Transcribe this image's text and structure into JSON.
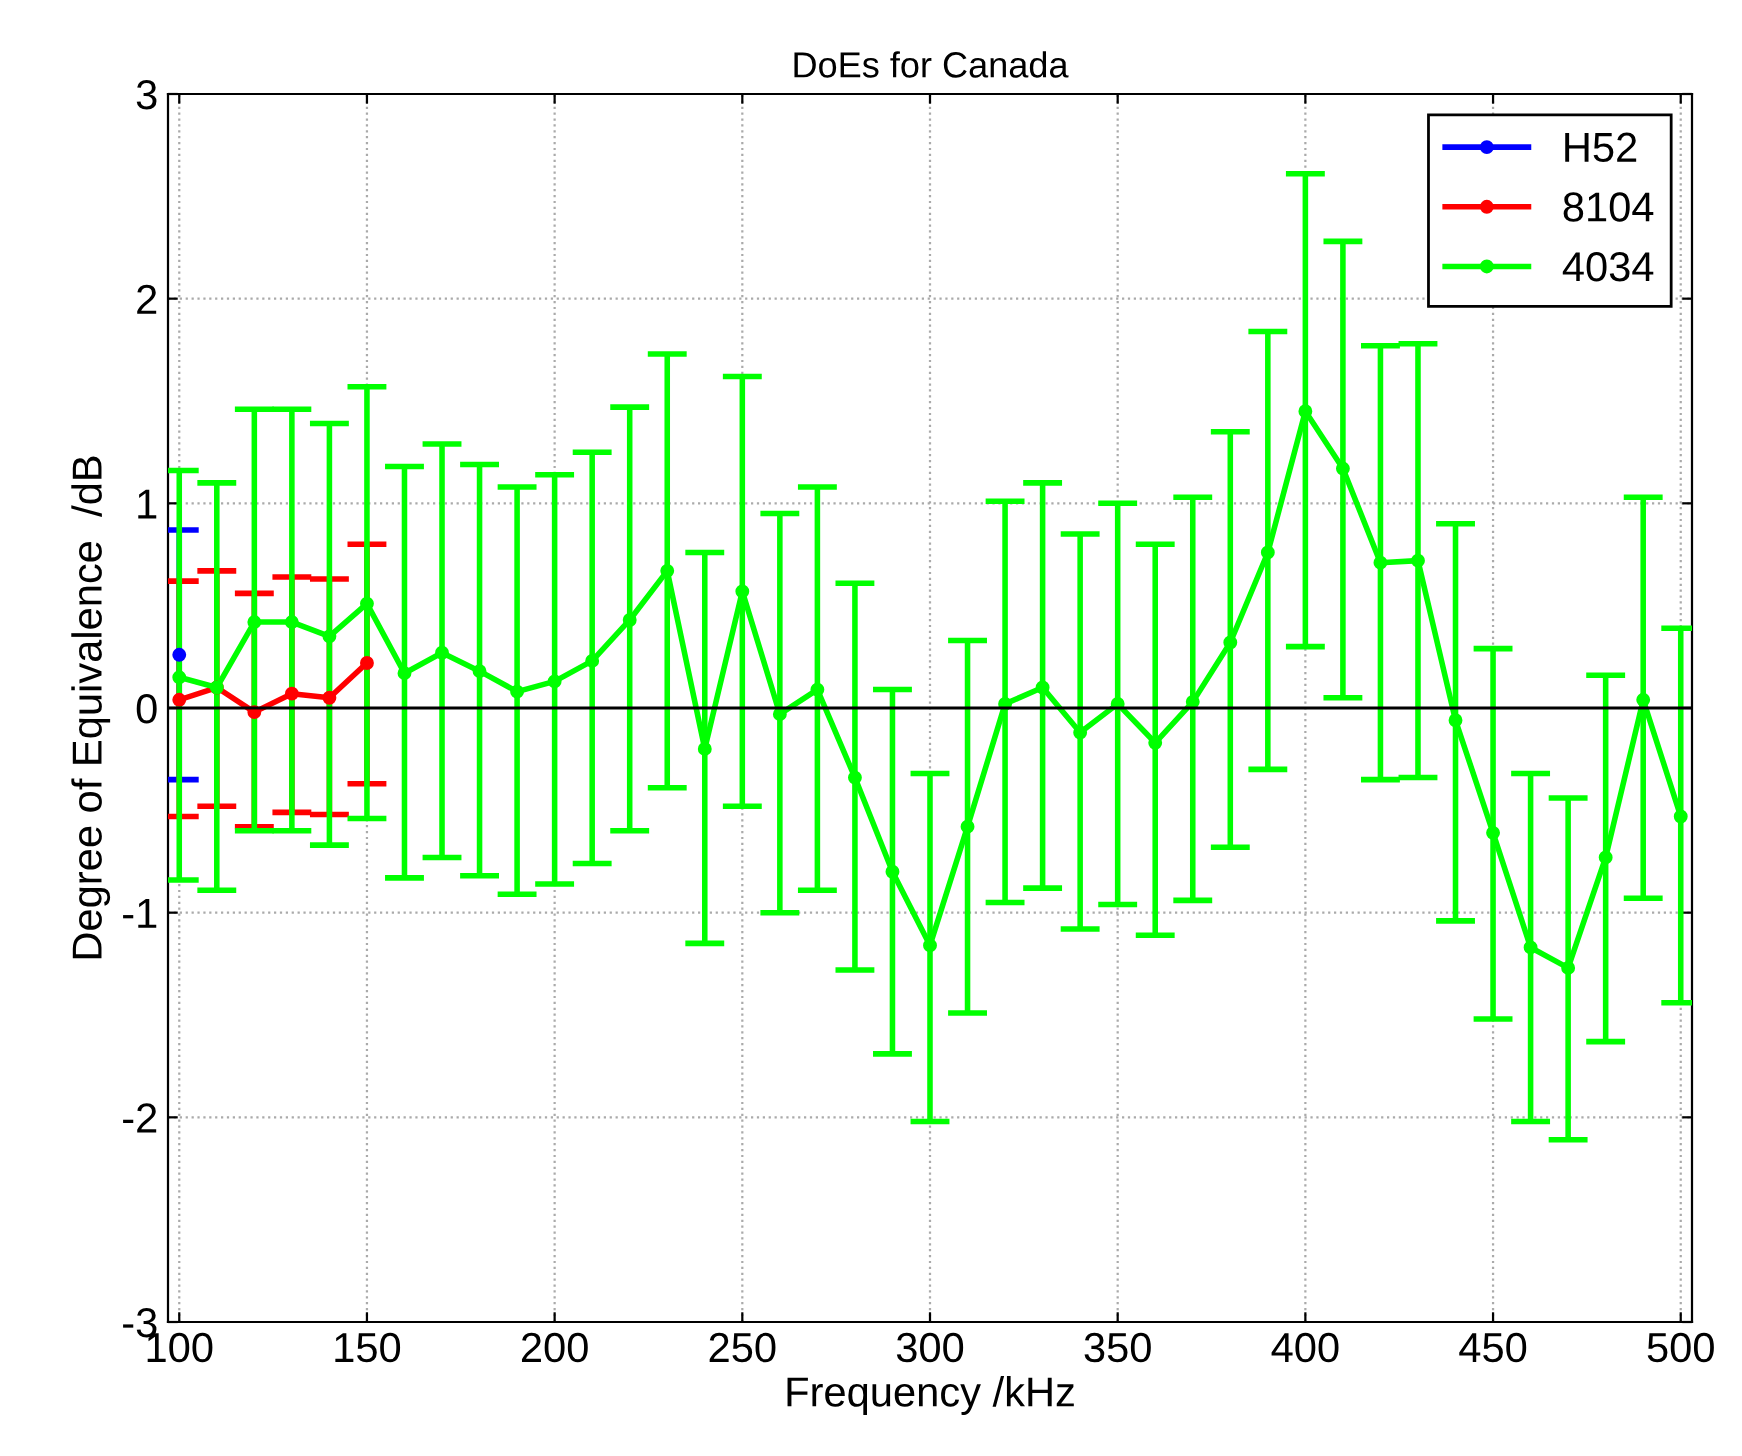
{
  "chart_data": {
    "type": "line",
    "title": "DoEs for Canada",
    "xlabel": "Frequency /kHz",
    "ylabel": "Degree of Equivalence  /dB",
    "xlim": [
      97,
      503
    ],
    "xticks": [
      100,
      150,
      200,
      250,
      300,
      350,
      400,
      450,
      500
    ],
    "ylim": [
      -3,
      3
    ],
    "yticks": [
      -3,
      -2,
      -1,
      0,
      1,
      2,
      3
    ],
    "grid": true,
    "legend": "top right",
    "marker": "circle",
    "line_style": "solid",
    "ref_lines": [
      {
        "axis": "y",
        "value": 0,
        "color": "#000000"
      }
    ],
    "series": [
      {
        "name": "H52",
        "color": "#0000ff",
        "x": [
          100
        ],
        "values": [
          0.26
        ],
        "errors": [
          [
            -0.35,
            0.87
          ]
        ]
      },
      {
        "name": "8104",
        "color": "#ff0000",
        "x": [
          100,
          110,
          120,
          130,
          140,
          150
        ],
        "values": [
          0.04,
          0.1,
          -0.02,
          0.07,
          0.05,
          0.22
        ],
        "errors": [
          [
            -0.53,
            0.62
          ],
          [
            -0.48,
            0.67
          ],
          [
            -0.58,
            0.56
          ],
          [
            -0.51,
            0.64
          ],
          [
            -0.52,
            0.63
          ],
          [
            -0.37,
            0.8
          ]
        ]
      },
      {
        "name": "4034",
        "color": "#00ff00",
        "x": [
          100,
          110,
          120,
          130,
          140,
          150,
          160,
          170,
          180,
          190,
          200,
          210,
          220,
          230,
          240,
          250,
          260,
          270,
          280,
          290,
          300,
          310,
          320,
          330,
          340,
          350,
          360,
          370,
          380,
          390,
          400,
          410,
          420,
          430,
          440,
          450,
          460,
          470,
          480,
          490,
          500
        ],
        "values": [
          0.15,
          0.1,
          0.42,
          0.42,
          0.35,
          0.51,
          0.17,
          0.27,
          0.18,
          0.08,
          0.13,
          0.23,
          0.43,
          0.67,
          -0.2,
          0.57,
          -0.03,
          0.09,
          -0.34,
          -0.8,
          -1.16,
          -0.58,
          0.02,
          0.1,
          -0.12,
          0.02,
          -0.17,
          0.03,
          0.32,
          0.76,
          1.45,
          1.17,
          0.71,
          0.72,
          -0.06,
          -0.61,
          -1.17,
          -1.27,
          -0.73,
          0.04,
          -0.53
        ],
        "errors": [
          [
            -0.84,
            1.16
          ],
          [
            -0.89,
            1.1
          ],
          [
            -0.6,
            1.46
          ],
          [
            -0.6,
            1.46
          ],
          [
            -0.67,
            1.39
          ],
          [
            -0.54,
            1.57
          ],
          [
            -0.83,
            1.18
          ],
          [
            -0.73,
            1.29
          ],
          [
            -0.82,
            1.19
          ],
          [
            -0.91,
            1.08
          ],
          [
            -0.86,
            1.14
          ],
          [
            -0.76,
            1.25
          ],
          [
            -0.6,
            1.47
          ],
          [
            -0.39,
            1.73
          ],
          [
            -1.15,
            0.76
          ],
          [
            -0.48,
            1.62
          ],
          [
            -1.0,
            0.95
          ],
          [
            -0.89,
            1.08
          ],
          [
            -1.28,
            0.61
          ],
          [
            -1.69,
            0.09
          ],
          [
            -2.02,
            -0.32
          ],
          [
            -1.49,
            0.33
          ],
          [
            -0.95,
            1.01
          ],
          [
            -0.88,
            1.1
          ],
          [
            -1.08,
            0.85
          ],
          [
            -0.96,
            1.0
          ],
          [
            -1.11,
            0.8
          ],
          [
            -0.94,
            1.03
          ],
          [
            -0.68,
            1.35
          ],
          [
            -0.3,
            1.84
          ],
          [
            0.3,
            2.61
          ],
          [
            0.05,
            2.28
          ],
          [
            -0.35,
            1.77
          ],
          [
            -0.34,
            1.78
          ],
          [
            -1.04,
            0.9
          ],
          [
            -1.52,
            0.29
          ],
          [
            -2.02,
            -0.32
          ],
          [
            -2.11,
            -0.44
          ],
          [
            -1.63,
            0.16
          ],
          [
            -0.93,
            1.03
          ],
          [
            -1.44,
            0.39
          ]
        ]
      }
    ]
  }
}
